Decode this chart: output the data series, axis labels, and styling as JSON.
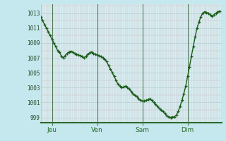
{
  "bg_color": "#c5e8ee",
  "plot_bg_color": "#d6eef2",
  "line_color": "#1a5c1a",
  "marker": "+",
  "markersize": 3,
  "linewidth": 1.0,
  "grid_color": "#aac8cc",
  "grid_minor_color": "#c0d8dc",
  "ylabel_color": "#2a4a2a",
  "xlabel_color": "#2a6a2a",
  "xtick_labels": [
    "Jeu",
    "Ven",
    "Sam",
    "Dim"
  ],
  "ytick_labels": [
    "999",
    "1001",
    "1003",
    "1005",
    "1007",
    "1009",
    "1011",
    "1013"
  ],
  "ytick_values": [
    999,
    1001,
    1003,
    1005,
    1007,
    1009,
    1011,
    1013
  ],
  "ylim": [
    998.3,
    1014.2
  ],
  "xlim": [
    0,
    96
  ],
  "vline_positions": [
    6,
    30,
    54,
    78
  ],
  "values": [
    1012.5,
    1012.0,
    1011.5,
    1011.0,
    1010.5,
    1010.0,
    1009.5,
    1009.0,
    1008.5,
    1008.0,
    1007.8,
    1007.2,
    1007.0,
    1007.3,
    1007.6,
    1007.8,
    1007.9,
    1007.8,
    1007.6,
    1007.5,
    1007.4,
    1007.3,
    1007.2,
    1007.0,
    1007.2,
    1007.5,
    1007.7,
    1007.8,
    1007.6,
    1007.5,
    1007.4,
    1007.3,
    1007.2,
    1007.0,
    1006.8,
    1006.5,
    1006.0,
    1005.5,
    1005.0,
    1004.5,
    1004.0,
    1003.5,
    1003.2,
    1003.0,
    1003.1,
    1003.2,
    1003.0,
    1002.8,
    1002.5,
    1002.2,
    1002.0,
    1001.8,
    1001.5,
    1001.3,
    1001.2,
    1001.2,
    1001.3,
    1001.4,
    1001.5,
    1001.3,
    1001.0,
    1000.8,
    1000.5,
    1000.2,
    1000.0,
    999.8,
    999.5,
    999.2,
    999.1,
    999.0,
    999.05,
    999.1,
    999.3,
    999.8,
    1000.5,
    1001.3,
    1002.2,
    1003.2,
    1004.5,
    1005.8,
    1007.2,
    1008.5,
    1009.8,
    1011.0,
    1011.8,
    1012.5,
    1013.0,
    1013.2,
    1013.1,
    1013.0,
    1012.8,
    1012.6,
    1012.8,
    1013.0,
    1013.2,
    1013.3
  ]
}
